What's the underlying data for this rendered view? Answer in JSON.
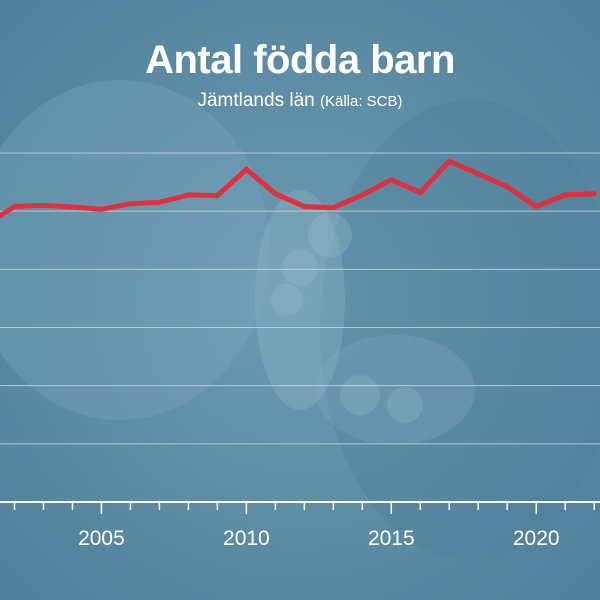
{
  "colors": {
    "background": "#5f8ea7",
    "line": "#e0303e",
    "gridline": "#c6d9e4",
    "text": "#ffffff"
  },
  "header": {
    "title": "Antal födda barn",
    "subtitle_region": "Jämtlands län",
    "subtitle_source": "(Källa: SCB)"
  },
  "chart_data": {
    "type": "line",
    "title": "Antal födda barn",
    "subtitle": "Jämtlands län (Källa: SCB)",
    "xlabel": "",
    "ylabel": "",
    "xlim": [
      2001.5,
      2022.2
    ],
    "ylim": [
      0,
      1500
    ],
    "x_ticks": [
      2005,
      2010,
      2015,
      2020
    ],
    "x_tick_labels": [
      "2005",
      "2010",
      "2015",
      "2020"
    ],
    "y_tick_labels": [],
    "grid": true,
    "legend": "none",
    "series": [
      {
        "x": [
          2001,
          2002,
          2003,
          2004,
          2005,
          2006,
          2007,
          2008,
          2009,
          2010,
          2011,
          2012,
          2013,
          2014,
          2015,
          2016,
          2017,
          2018,
          2019,
          2020,
          2021,
          2022
        ],
        "values": [
          1190,
          1270,
          1275,
          1268,
          1258,
          1282,
          1288,
          1320,
          1317,
          1430,
          1325,
          1270,
          1265,
          1320,
          1385,
          1330,
          1465,
          1410,
          1355,
          1270,
          1320,
          1325
        ]
      }
    ]
  }
}
